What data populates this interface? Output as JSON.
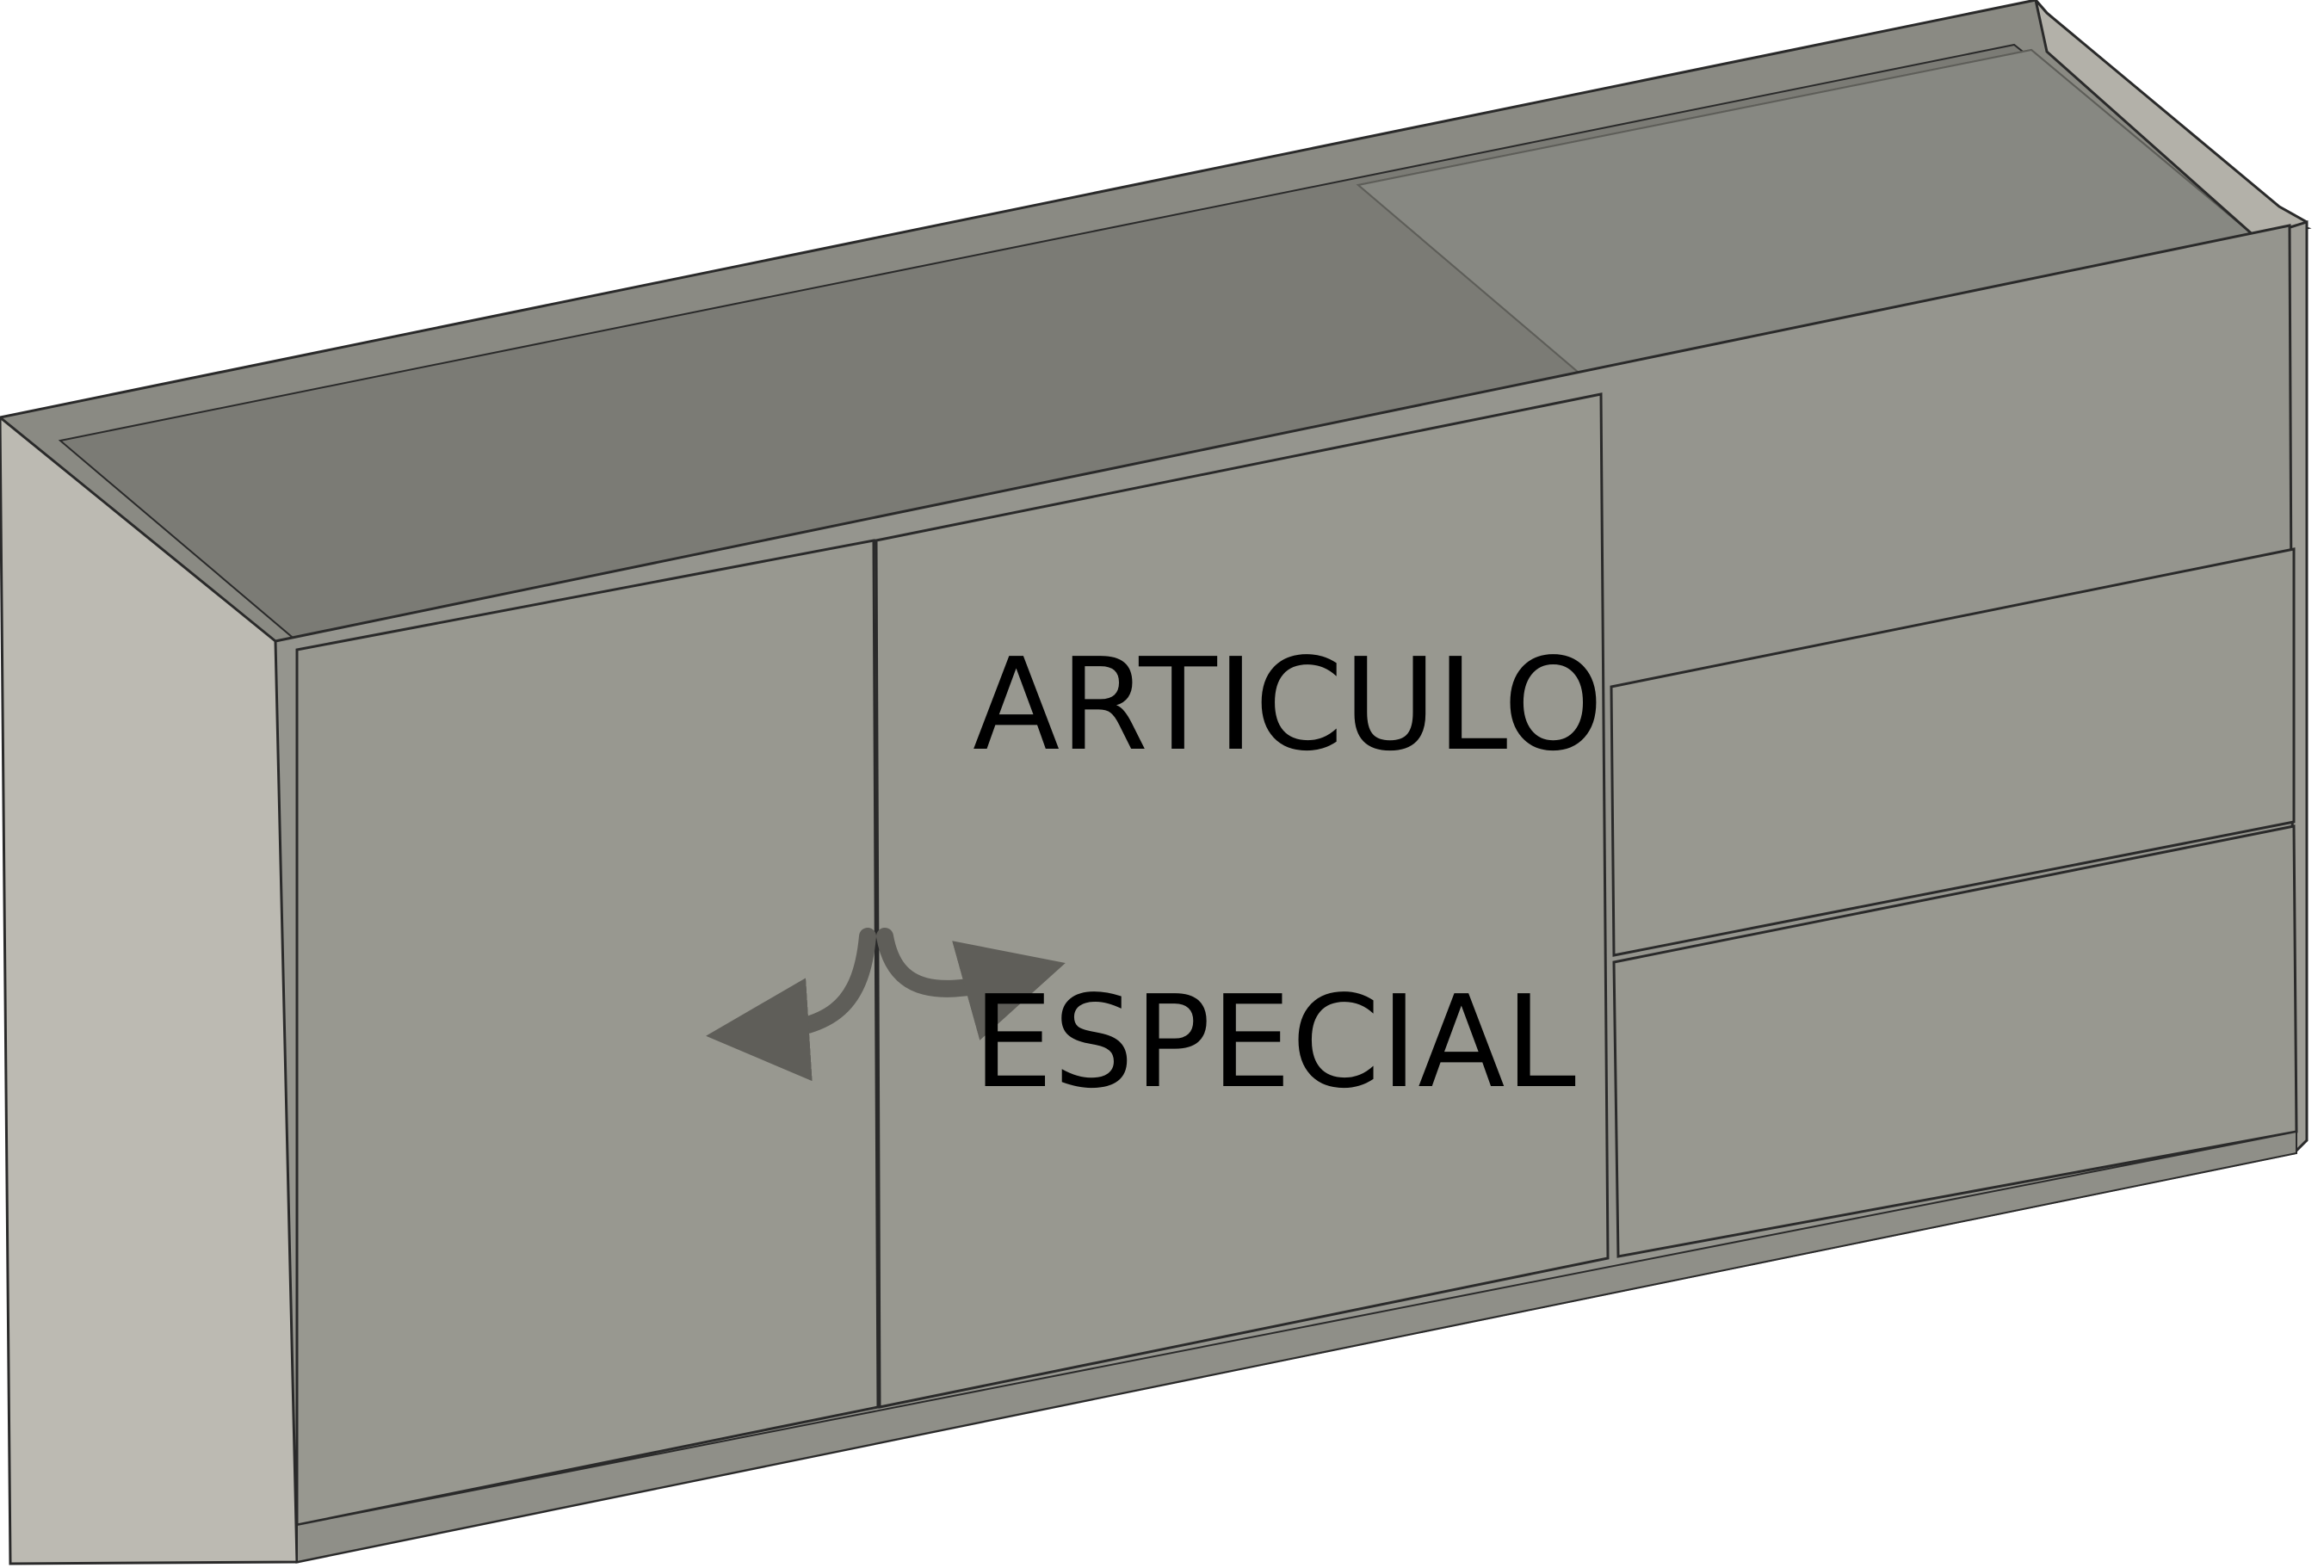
{
  "drawing": {
    "label_line_1": "ARTICULO",
    "label_line_2": "ESPECIAL"
  },
  "colors": {
    "background": "#ffffff",
    "front_panel": "#989890",
    "side_panel": "#bcbab2",
    "top_surface": "#7b7b75",
    "edge": "#8a8a83",
    "glass": "#8c8d86",
    "outline": "#2a2a2a",
    "arrow": "#5f5e59"
  },
  "icons": {
    "swing_arrows": "double-door-opening-arrows-icon"
  }
}
